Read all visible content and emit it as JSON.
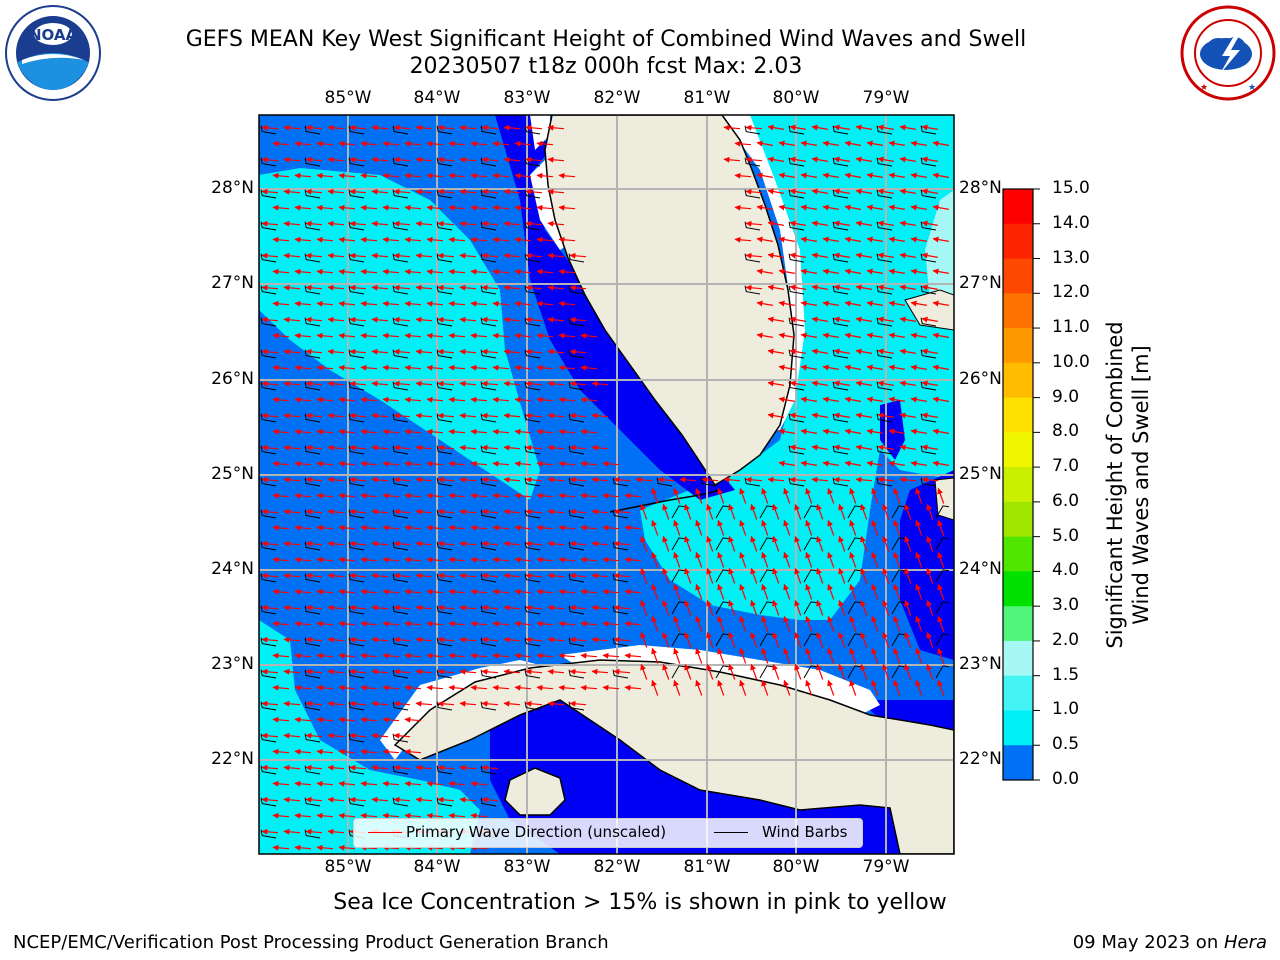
{
  "title": {
    "line1": "GEFS MEAN Key West Significant Height of Combined Wind Waves and Swell",
    "line2": "20230507 t18z 000h fcst   Max: 2.03"
  },
  "logos": {
    "noaa": {
      "text": "NOAA",
      "ring_text": "NATIONAL OCEANIC AND ATMOSPHERIC ADMINISTRATION · U.S. DEPARTMENT OF COMMERCE"
    },
    "nws": {
      "ring_text": "NATIONAL WEATHER SERVICE"
    }
  },
  "map": {
    "lon_ticks": [
      "85°W",
      "84°W",
      "83°W",
      "82°W",
      "81°W",
      "80°W",
      "79°W"
    ],
    "lat_ticks": [
      "28°N",
      "27°N",
      "26°N",
      "25°N",
      "24°N",
      "23°N",
      "22°N"
    ],
    "colors": {
      "land": "#eeecdc",
      "wave_0_0_5": "#0000f5",
      "wave_0_5_1": "#0070f5",
      "wave_1_1_5": "#00f0f5",
      "wave_1_5_2": "#44f4f5",
      "wave_2_3": "#a6f8f5",
      "grid": "#b4b4b4",
      "wave_arrow": "#ff0000",
      "wind_barb": "#000000"
    }
  },
  "colorbar": {
    "labels": [
      "15.0",
      "14.0",
      "13.0",
      "12.0",
      "11.0",
      "10.0",
      "9.0",
      "8.0",
      "7.0",
      "6.0",
      "5.0",
      "4.0",
      "3.0",
      "2.0",
      "1.5",
      "1.0",
      "0.5",
      "0.0"
    ],
    "colors": [
      "#fe0000",
      "#fc2400",
      "#fc4800",
      "#fe7200",
      "#ff9900",
      "#ffbc00",
      "#ffe000",
      "#f0f600",
      "#c8f000",
      "#a0e600",
      "#50e600",
      "#00e100",
      "#50f57a",
      "#a6f8f5",
      "#44f4f5",
      "#00f0f5",
      "#0070f5",
      "#0000f5"
    ],
    "title": "Significant Height of Combined Wind Waves and Swell [m]",
    "title_line1": "Significant Height of Combined",
    "title_line2": "Wind Waves and Swell [m]"
  },
  "legend": {
    "items": [
      {
        "label": "Primary Wave Direction (unscaled)",
        "color": "#ff0000"
      },
      {
        "label": "Wind Barbs",
        "color": "#000000"
      }
    ]
  },
  "caption": "Sea Ice Concentration > 15% is shown in pink to yellow",
  "footer": {
    "left": "NCEP/EMC/Verification Post Processing Product Generation Branch",
    "right_prefix": "09 May 2023 on ",
    "right_host": "Hera"
  }
}
